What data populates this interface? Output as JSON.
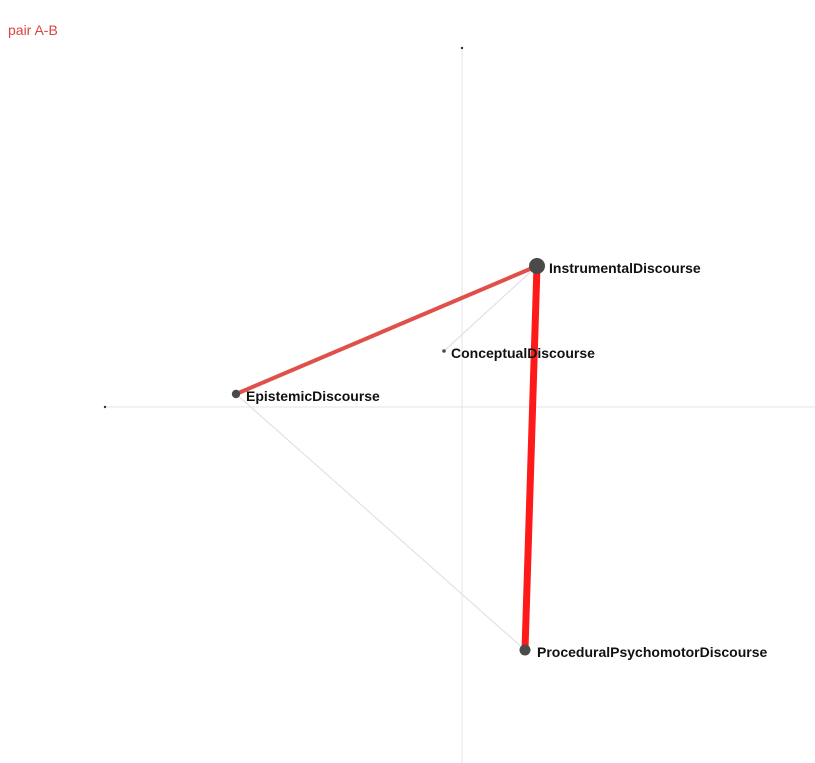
{
  "header": {
    "pair_label": "pair A-B"
  },
  "colors": {
    "pair_label": "#d9453e",
    "node_fill": "#4a4a4a",
    "strong_edge": "#ff1a1a",
    "medium_edge": "#e0504a",
    "faint_edge": "#e2e2e2",
    "axis": "#e6e6e6"
  },
  "network": {
    "nodes": [
      {
        "id": "instrumental",
        "label": "InstrumentalDiscourse",
        "size": "large"
      },
      {
        "id": "conceptual",
        "label": "ConceptualDiscourse",
        "size": "tiny"
      },
      {
        "id": "epistemic",
        "label": "EpistemicDiscourse",
        "size": "small"
      },
      {
        "id": "procedural",
        "label": "ProceduralPsychomotorDiscourse",
        "size": "medium"
      }
    ],
    "edges": [
      {
        "from": "instrumental",
        "to": "procedural",
        "strength": "strong",
        "color": "#ff1a1a"
      },
      {
        "from": "epistemic",
        "to": "instrumental",
        "strength": "medium",
        "color": "#e0504a"
      },
      {
        "from": "epistemic",
        "to": "procedural",
        "strength": "faint",
        "color": "#e2e2e2"
      },
      {
        "from": "conceptual",
        "to": "instrumental",
        "strength": "faint",
        "color": "#e2e2e2"
      }
    ]
  }
}
